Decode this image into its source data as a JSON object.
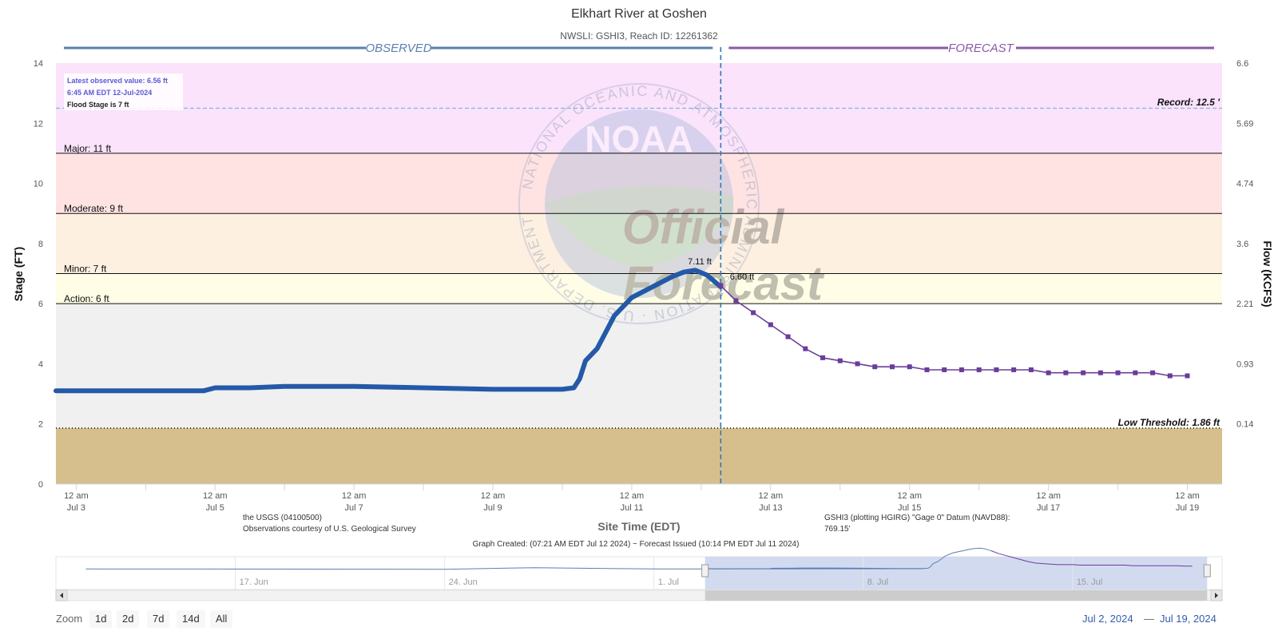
{
  "chart_data": {
    "type": "line",
    "title": "Elkhart River at Goshen",
    "subtitle": "NWSLI: GSHI3, Reach ID: 12261362",
    "xlabel": "Site Time (EDT)",
    "ylabel": "Stage (FT)",
    "y2label": "Flow (KCFS)",
    "ylim": [
      0,
      14
    ],
    "y_ticks": [
      "0",
      "2",
      "4",
      "6",
      "8",
      "10",
      "12",
      "14"
    ],
    "y2_ticks": [
      "0.14",
      "0.93",
      "2.21",
      "3.6",
      "4.74",
      "5.69",
      "6.6"
    ],
    "y2_tick_stage": [
      2,
      4,
      6,
      8,
      10,
      12,
      14
    ],
    "x_range_days": [
      "2024-07-02T17:00",
      "2024-07-19T12:00"
    ],
    "x_ticks": [
      {
        "date": "2024-07-03",
        "line1": "12 am",
        "line2": "Jul 3"
      },
      {
        "date": "2024-07-05",
        "line1": "12 am",
        "line2": "Jul 5"
      },
      {
        "date": "2024-07-07",
        "line1": "12 am",
        "line2": "Jul 7"
      },
      {
        "date": "2024-07-09",
        "line1": "12 am",
        "line2": "Jul 9"
      },
      {
        "date": "2024-07-11",
        "line1": "12 am",
        "line2": "Jul 11"
      },
      {
        "date": "2024-07-13",
        "line1": "12 am",
        "line2": "Jul 13"
      },
      {
        "date": "2024-07-15",
        "line1": "12 am",
        "line2": "Jul 15"
      },
      {
        "date": "2024-07-17",
        "line1": "12 am",
        "line2": "Jul 17"
      },
      {
        "date": "2024-07-19",
        "line1": "12 am",
        "line2": "Jul 19"
      }
    ],
    "section_labels": {
      "observed": "OBSERVED",
      "forecast": "FORECAST"
    },
    "forecast_start": "2024-07-12T06:45",
    "flood_categories": [
      {
        "label": "Major: 11 ft",
        "stage": 11,
        "color": "#fbe3fb"
      },
      {
        "label": "Moderate: 9 ft",
        "stage": 9,
        "color": "#ffe3e3"
      },
      {
        "label": "Minor: 7 ft",
        "stage": 7,
        "color": "#fdf0e1"
      },
      {
        "label": "Action: 6 ft",
        "stage": 6,
        "color": "#fffde6"
      }
    ],
    "record": {
      "label": "Record: 12.5 '",
      "stage": 12.5
    },
    "low_threshold": {
      "label": "Low Threshold: 1.86 ft",
      "stage": 1.86
    },
    "info_box": {
      "line1": "Latest observed value: 6.56 ft",
      "line2": "6:45 AM EDT 12-Jul-2024",
      "line3": "Flood Stage is 7 ft"
    },
    "peak_label": "7.11 ft",
    "latest_label": "6.60 ft",
    "series": [
      {
        "name": "Observed",
        "color": "#2359a8",
        "x": [
          "2024-07-02T17:00",
          "2024-07-03T12:00",
          "2024-07-04T12:00",
          "2024-07-04T20:00",
          "2024-07-05T00:00",
          "2024-07-05T12:00",
          "2024-07-06T00:00",
          "2024-07-07T00:00",
          "2024-07-08T00:00",
          "2024-07-09T00:00",
          "2024-07-09T12:00",
          "2024-07-10T00:00",
          "2024-07-10T04:00",
          "2024-07-10T06:00",
          "2024-07-10T08:00",
          "2024-07-10T12:00",
          "2024-07-10T18:00",
          "2024-07-11T00:00",
          "2024-07-11T08:00",
          "2024-07-11T14:00",
          "2024-07-11T18:00",
          "2024-07-11T22:00",
          "2024-07-12T02:00",
          "2024-07-12T06:45"
        ],
        "y": [
          3.1,
          3.1,
          3.1,
          3.1,
          3.2,
          3.2,
          3.25,
          3.25,
          3.2,
          3.15,
          3.15,
          3.15,
          3.2,
          3.5,
          4.1,
          4.5,
          5.6,
          6.2,
          6.6,
          6.9,
          7.05,
          7.11,
          6.95,
          6.56
        ]
      },
      {
        "name": "Forecast",
        "color": "#6b3d9a",
        "x": [
          "2024-07-12T06:45",
          "2024-07-12T12:00",
          "2024-07-12T18:00",
          "2024-07-13T00:00",
          "2024-07-13T06:00",
          "2024-07-13T12:00",
          "2024-07-13T18:00",
          "2024-07-14T00:00",
          "2024-07-14T06:00",
          "2024-07-14T12:00",
          "2024-07-14T18:00",
          "2024-07-15T00:00",
          "2024-07-15T06:00",
          "2024-07-15T12:00",
          "2024-07-15T18:00",
          "2024-07-16T00:00",
          "2024-07-16T06:00",
          "2024-07-16T12:00",
          "2024-07-16T18:00",
          "2024-07-17T00:00",
          "2024-07-17T06:00",
          "2024-07-17T12:00",
          "2024-07-17T18:00",
          "2024-07-18T00:00",
          "2024-07-18T06:00",
          "2024-07-18T12:00",
          "2024-07-18T18:00",
          "2024-07-19T00:00"
        ],
        "y": [
          6.6,
          6.1,
          5.7,
          5.3,
          4.9,
          4.5,
          4.2,
          4.1,
          4.0,
          3.9,
          3.9,
          3.9,
          3.8,
          3.8,
          3.8,
          3.8,
          3.8,
          3.8,
          3.8,
          3.7,
          3.7,
          3.7,
          3.7,
          3.7,
          3.7,
          3.7,
          3.6,
          3.6
        ]
      }
    ],
    "watermark": {
      "logo": "NOAA",
      "seal_text": "NATIONAL OCEANIC AND ATMOSPHERIC ADMINISTRATION · U.S. DEPARTMENT OF COMMERCE",
      "line1": "Official",
      "line2": "Forecast"
    },
    "credits": {
      "left1": "the USGS (04100500)",
      "left2": "Observations courtesy of U.S. Geological Survey",
      "right1": "GSHI3 (plotting HGIRG) \"Gage 0\" Datum (NAVD88):",
      "right2": "769.15'",
      "bottom": "Graph Created: (07:21 AM EDT Jul 12 2024) ~ Forecast Issued (10:14 PM EDT Jul 11 2024)"
    },
    "navigator": {
      "labels": [
        {
          "date": "2024-06-17",
          "text": "17. Jun"
        },
        {
          "date": "2024-06-24",
          "text": "24. Jun"
        },
        {
          "date": "2024-07-01",
          "text": "1. Jul"
        },
        {
          "date": "2024-07-08",
          "text": "8. Jul"
        },
        {
          "date": "2024-07-15",
          "text": "15. Jul"
        }
      ],
      "range": [
        "2024-06-11",
        "2024-07-20"
      ]
    }
  },
  "controls": {
    "zoom_label": "Zoom",
    "zoom_buttons": [
      "1d",
      "2d",
      "7d",
      "14d",
      "All"
    ],
    "range_from": "Jul 2, 2024",
    "range_sep": "—",
    "range_to": "Jul 19, 2024"
  }
}
